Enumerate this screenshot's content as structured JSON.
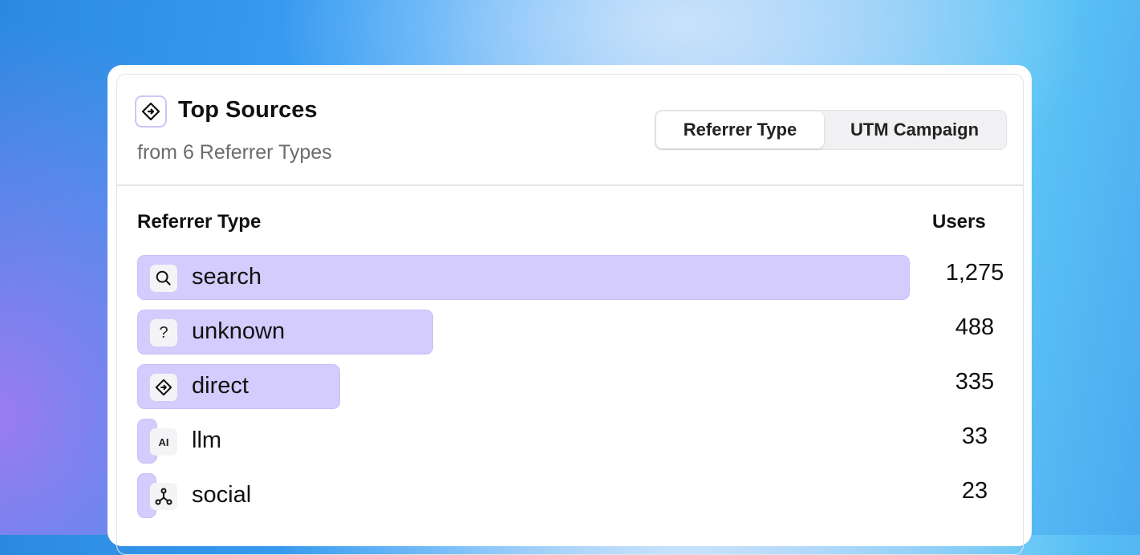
{
  "header": {
    "title": "Top Sources",
    "subtitle": "from 6 Referrer Types",
    "icon": "direction-diamond-icon"
  },
  "tabs": [
    {
      "label": "Referrer Type",
      "selected": true
    },
    {
      "label": "UTM Campaign",
      "selected": false
    }
  ],
  "table": {
    "col_label": "Referrer Type",
    "col_value": "Users",
    "rows": [
      {
        "label": "search",
        "value": "1,275",
        "num": 1275,
        "icon": "search-icon"
      },
      {
        "label": "unknown",
        "value": "488",
        "num": 488,
        "icon": "question-icon"
      },
      {
        "label": "direct",
        "value": "335",
        "num": 335,
        "icon": "direction-diamond-icon"
      },
      {
        "label": "llm",
        "value": "33",
        "num": 33,
        "icon": "ai-icon"
      },
      {
        "label": "social",
        "value": "23",
        "num": 23,
        "icon": "network-icon"
      }
    ]
  },
  "colors": {
    "bar": "#d4ccfc",
    "accent": "#cfc5f6"
  }
}
